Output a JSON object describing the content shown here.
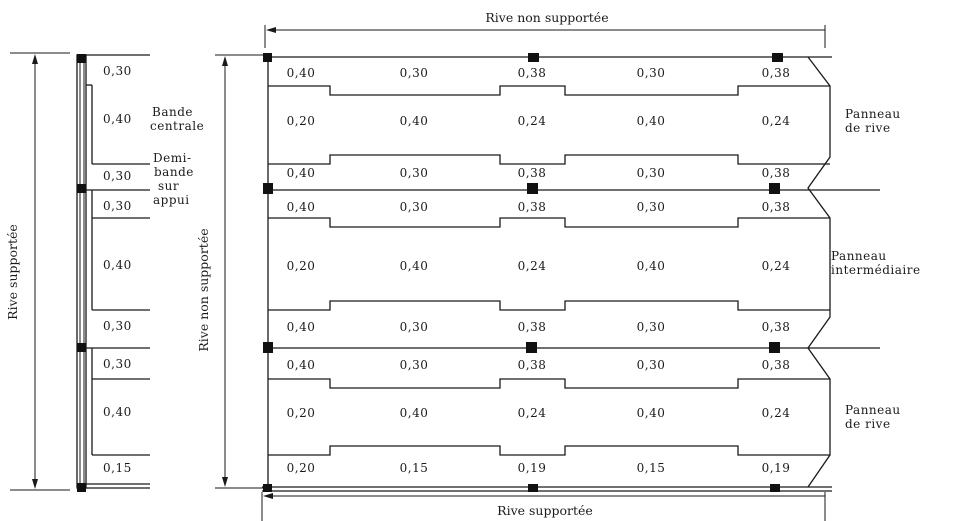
{
  "edges": {
    "top": "Rive non supportée",
    "bottom": "Rive supportée",
    "left_outer": "Rive supportée",
    "left_inner": "Rive non supportée"
  },
  "strip": {
    "labels": [
      "0,30",
      "0,40",
      "0,30",
      "0,30",
      "0,40",
      "0,30",
      "0,30",
      "0,40",
      "0,15"
    ],
    "band_central": [
      "Bande",
      "centrale"
    ],
    "half_band": [
      "Demi-",
      "bande",
      "sur",
      "appui"
    ]
  },
  "panels": {
    "rows": [
      [
        "0,40",
        "0,30",
        "0,38",
        "0,30",
        "0,38"
      ],
      [
        "0,20",
        "0,40",
        "0,24",
        "0,40",
        "0,24"
      ],
      [
        "0,40",
        "0,30",
        "0,38",
        "0,30",
        "0,38"
      ],
      [
        "0,40",
        "0,30",
        "0,38",
        "0,30",
        "0,38"
      ],
      [
        "0,20",
        "0,40",
        "0,24",
        "0,40",
        "0,24"
      ],
      [
        "0,40",
        "0,30",
        "0,38",
        "0,30",
        "0,38"
      ],
      [
        "0,40",
        "0,30",
        "0,38",
        "0,30",
        "0,38"
      ],
      [
        "0,20",
        "0,40",
        "0,24",
        "0,40",
        "0,24"
      ],
      [
        "0,20",
        "0,15",
        "0,19",
        "0,15",
        "0,19"
      ]
    ],
    "labels": [
      [
        "Panneau",
        "de rive"
      ],
      [
        "Panneau",
        "intermédiaire"
      ],
      [
        "Panneau",
        "de rive"
      ]
    ]
  }
}
